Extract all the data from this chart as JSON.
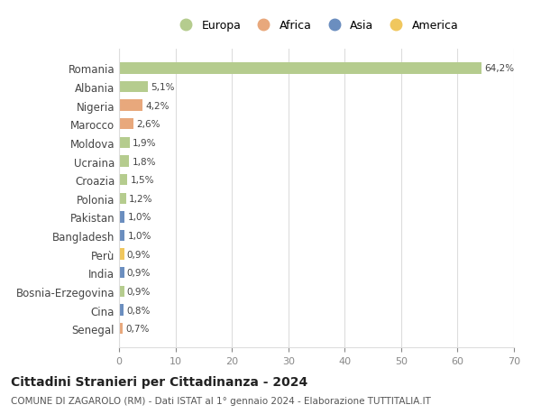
{
  "countries": [
    "Romania",
    "Albania",
    "Nigeria",
    "Marocco",
    "Moldova",
    "Ucraina",
    "Croazia",
    "Polonia",
    "Pakistan",
    "Bangladesh",
    "Perù",
    "India",
    "Bosnia-Erzegovina",
    "Cina",
    "Senegal"
  ],
  "values": [
    64.2,
    5.1,
    4.2,
    2.6,
    1.9,
    1.8,
    1.5,
    1.2,
    1.0,
    1.0,
    0.9,
    0.9,
    0.9,
    0.8,
    0.7
  ],
  "labels": [
    "64,2%",
    "5,1%",
    "4,2%",
    "2,6%",
    "1,9%",
    "1,8%",
    "1,5%",
    "1,2%",
    "1,0%",
    "1,0%",
    "0,9%",
    "0,9%",
    "0,9%",
    "0,8%",
    "0,7%"
  ],
  "continents": [
    "Europa",
    "Europa",
    "Africa",
    "Africa",
    "Europa",
    "Europa",
    "Europa",
    "Europa",
    "Asia",
    "Asia",
    "America",
    "Asia",
    "Europa",
    "Asia",
    "Africa"
  ],
  "continent_colors": {
    "Europa": "#b5cc8e",
    "Africa": "#e8a87c",
    "Asia": "#6b8ebf",
    "America": "#f0c75e"
  },
  "legend_order": [
    "Europa",
    "Africa",
    "Asia",
    "America"
  ],
  "title": "Cittadini Stranieri per Cittadinanza - 2024",
  "subtitle": "COMUNE DI ZAGAROLO (RM) - Dati ISTAT al 1° gennaio 2024 - Elaborazione TUTTITALIA.IT",
  "xlim": [
    0,
    70
  ],
  "xticks": [
    0,
    10,
    20,
    30,
    40,
    50,
    60,
    70
  ],
  "bg_color": "#ffffff",
  "grid_color": "#dddddd",
  "bar_height": 0.6
}
